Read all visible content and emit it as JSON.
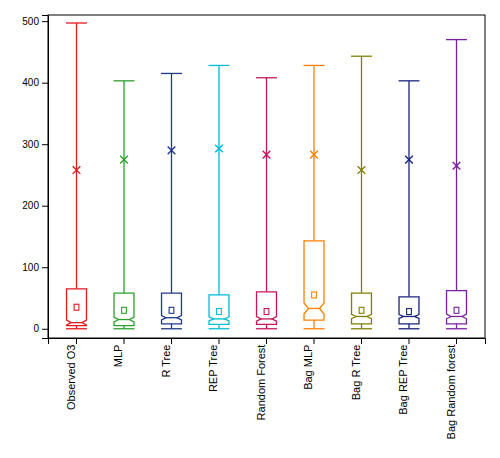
{
  "chart_data": {
    "type": "box",
    "categories": [
      "Observed O3",
      "MLP",
      "R Tree",
      "REP Tree",
      "Random Forest",
      "Bag MLP",
      "Bag R Tree",
      "Bag REP Tree",
      "Bag Random forest"
    ],
    "colors": [
      "#e41a1c",
      "#2ca02c",
      "#1f3a8a",
      "#00bcd4",
      "#c2185b",
      "#ff7f00",
      "#808000",
      "#1a237e",
      "#7b1fa2"
    ],
    "whislo": [
      0,
      0,
      0,
      0,
      0,
      0,
      0,
      0,
      0
    ],
    "q1": [
      5,
      5,
      8,
      7,
      7,
      14,
      8,
      8,
      8
    ],
    "med": [
      10,
      15,
      18,
      16,
      16,
      33,
      20,
      20,
      20
    ],
    "q3": [
      65,
      58,
      58,
      55,
      60,
      143,
      58,
      52,
      62
    ],
    "whishi": [
      497,
      403,
      415,
      428,
      408,
      428,
      443,
      403,
      470
    ],
    "mean": [
      258,
      275,
      290,
      293,
      283,
      283,
      258,
      275,
      265
    ],
    "mean_y": [
      35,
      30,
      30,
      28,
      28,
      55,
      30,
      28,
      30
    ],
    "ylim": [
      -15,
      510
    ],
    "yticks": [
      0,
      100,
      200,
      300,
      400,
      500
    ]
  }
}
